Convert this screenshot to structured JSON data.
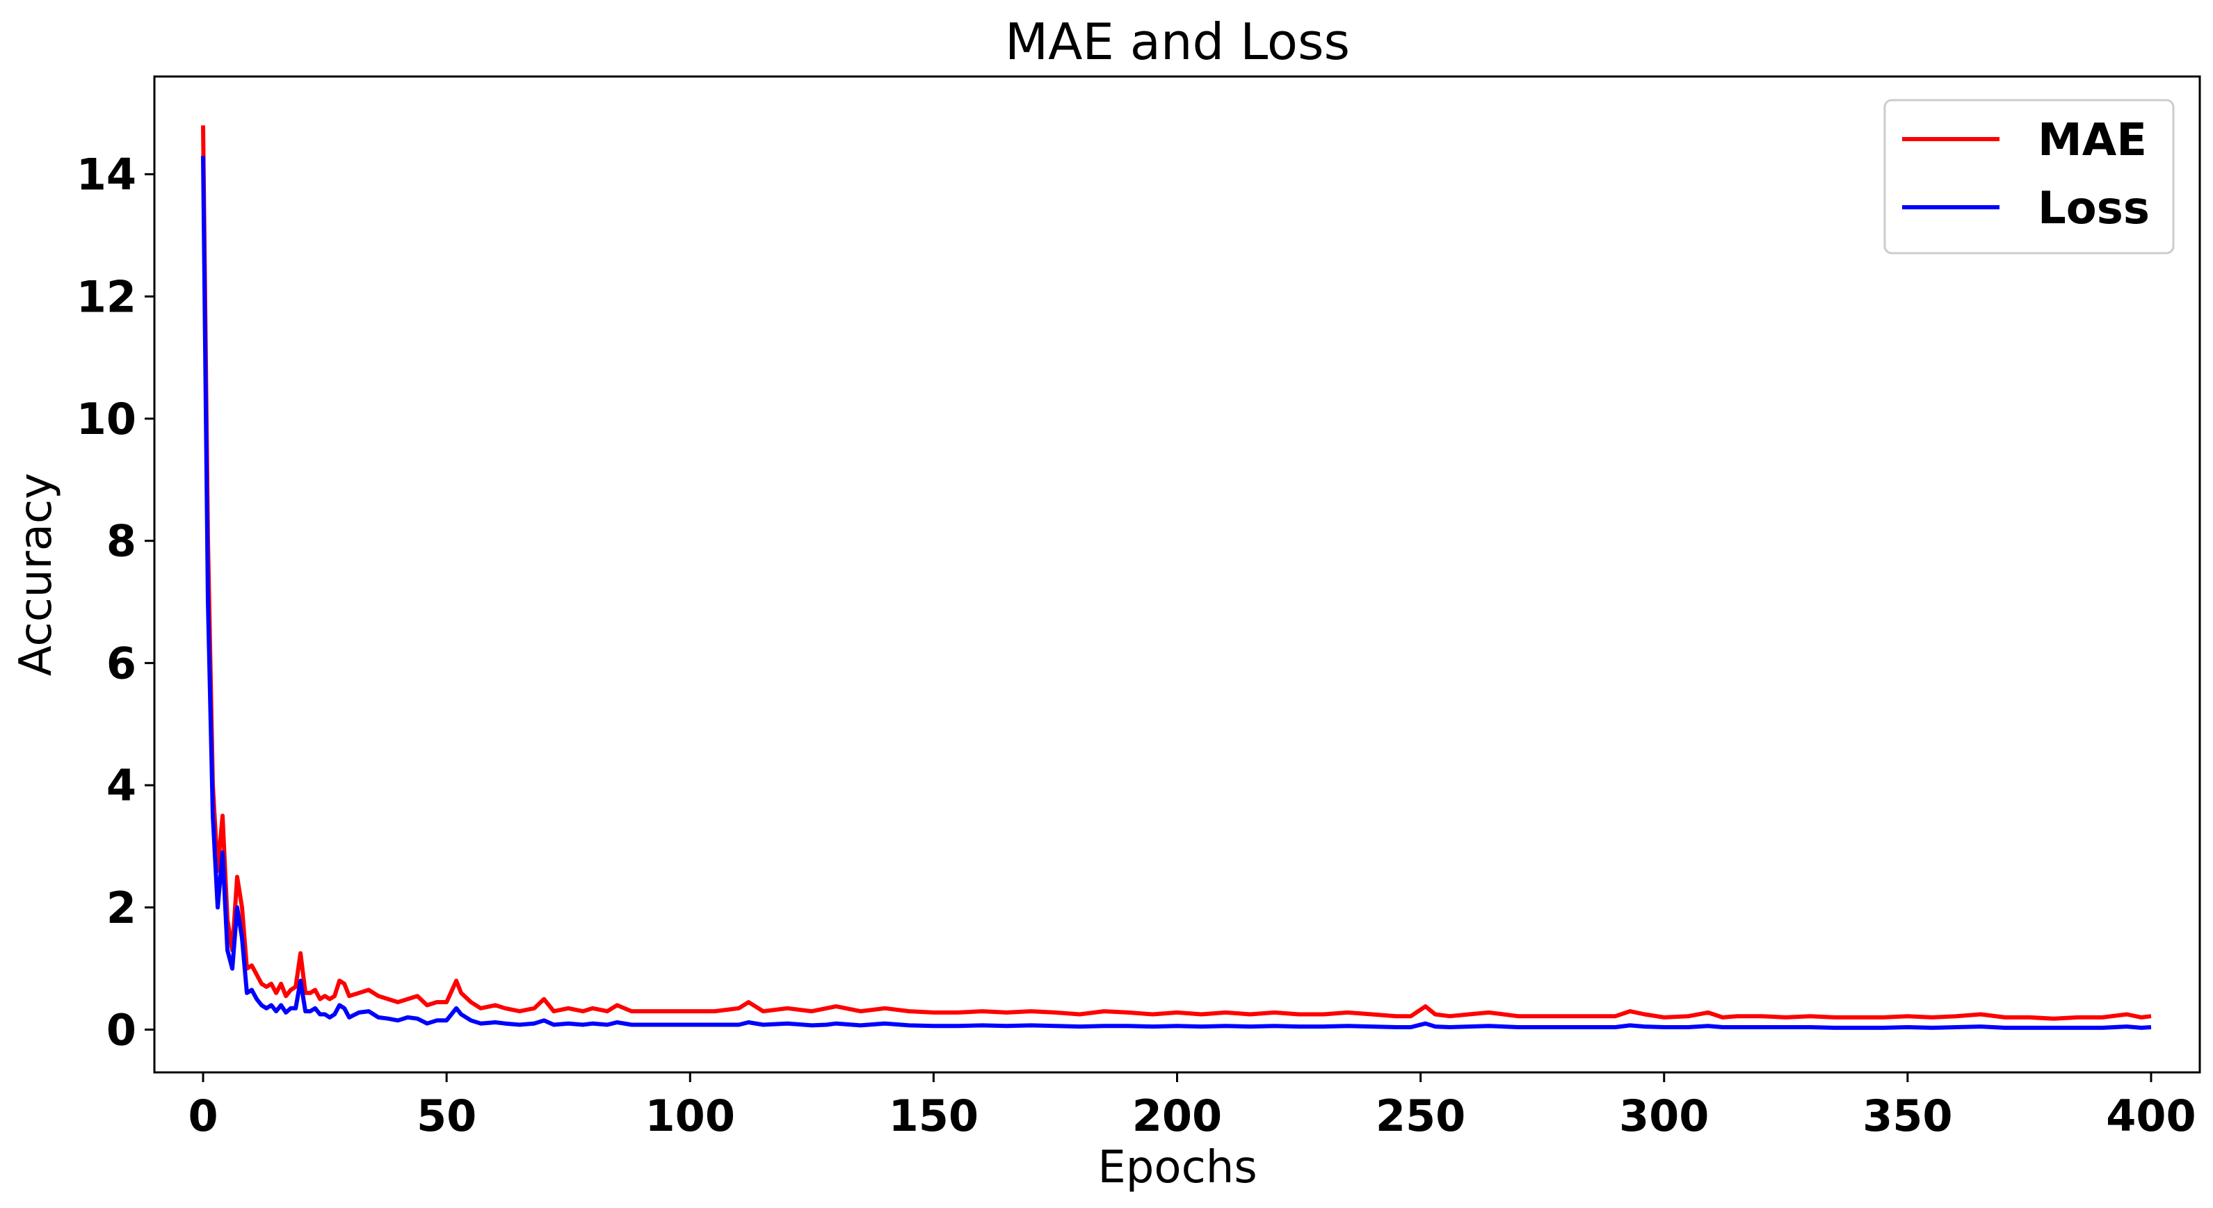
{
  "chart_data": {
    "type": "line",
    "title": "MAE and Loss",
    "xlabel": "Epochs",
    "ylabel": "Accuracy",
    "xlim": [
      -10,
      410
    ],
    "ylim": [
      -0.7,
      15.6
    ],
    "xticks": [
      0,
      50,
      100,
      150,
      200,
      250,
      300,
      350,
      400
    ],
    "yticks": [
      0,
      2,
      4,
      6,
      8,
      10,
      12,
      14
    ],
    "grid": false,
    "legend_position": "top-right",
    "series": [
      {
        "name": "MAE",
        "color": "#ff0000",
        "points": [
          [
            0,
            14.8
          ],
          [
            1,
            8.0
          ],
          [
            2,
            4.0
          ],
          [
            3,
            2.6
          ],
          [
            4,
            3.5
          ],
          [
            5,
            1.8
          ],
          [
            6,
            1.3
          ],
          [
            7,
            2.5
          ],
          [
            8,
            2.0
          ],
          [
            9,
            1.0
          ],
          [
            10,
            1.05
          ],
          [
            11,
            0.9
          ],
          [
            12,
            0.75
          ],
          [
            13,
            0.7
          ],
          [
            14,
            0.75
          ],
          [
            15,
            0.6
          ],
          [
            16,
            0.75
          ],
          [
            17,
            0.55
          ],
          [
            18,
            0.65
          ],
          [
            19,
            0.7
          ],
          [
            20,
            1.25
          ],
          [
            21,
            0.6
          ],
          [
            22,
            0.6
          ],
          [
            23,
            0.65
          ],
          [
            24,
            0.5
          ],
          [
            25,
            0.55
          ],
          [
            26,
            0.5
          ],
          [
            27,
            0.55
          ],
          [
            28,
            0.8
          ],
          [
            29,
            0.75
          ],
          [
            30,
            0.55
          ],
          [
            32,
            0.6
          ],
          [
            34,
            0.65
          ],
          [
            36,
            0.55
          ],
          [
            38,
            0.5
          ],
          [
            40,
            0.45
          ],
          [
            42,
            0.5
          ],
          [
            44,
            0.55
          ],
          [
            46,
            0.4
          ],
          [
            48,
            0.45
          ],
          [
            50,
            0.45
          ],
          [
            52,
            0.8
          ],
          [
            53,
            0.6
          ],
          [
            55,
            0.45
          ],
          [
            57,
            0.35
          ],
          [
            60,
            0.4
          ],
          [
            62,
            0.35
          ],
          [
            65,
            0.3
          ],
          [
            68,
            0.35
          ],
          [
            70,
            0.5
          ],
          [
            72,
            0.3
          ],
          [
            75,
            0.35
          ],
          [
            78,
            0.3
          ],
          [
            80,
            0.35
          ],
          [
            83,
            0.3
          ],
          [
            85,
            0.4
          ],
          [
            88,
            0.3
          ],
          [
            90,
            0.3
          ],
          [
            95,
            0.3
          ],
          [
            100,
            0.3
          ],
          [
            105,
            0.3
          ],
          [
            110,
            0.35
          ],
          [
            112,
            0.45
          ],
          [
            115,
            0.3
          ],
          [
            120,
            0.35
          ],
          [
            125,
            0.3
          ],
          [
            128,
            0.35
          ],
          [
            130,
            0.38
          ],
          [
            135,
            0.3
          ],
          [
            140,
            0.35
          ],
          [
            145,
            0.3
          ],
          [
            150,
            0.28
          ],
          [
            155,
            0.28
          ],
          [
            160,
            0.3
          ],
          [
            165,
            0.28
          ],
          [
            170,
            0.3
          ],
          [
            175,
            0.28
          ],
          [
            180,
            0.25
          ],
          [
            185,
            0.3
          ],
          [
            190,
            0.28
          ],
          [
            195,
            0.25
          ],
          [
            200,
            0.28
          ],
          [
            205,
            0.25
          ],
          [
            210,
            0.28
          ],
          [
            215,
            0.25
          ],
          [
            220,
            0.28
          ],
          [
            225,
            0.25
          ],
          [
            230,
            0.25
          ],
          [
            235,
            0.28
          ],
          [
            240,
            0.25
          ],
          [
            245,
            0.22
          ],
          [
            248,
            0.22
          ],
          [
            251,
            0.38
          ],
          [
            253,
            0.25
          ],
          [
            256,
            0.22
          ],
          [
            260,
            0.25
          ],
          [
            264,
            0.28
          ],
          [
            267,
            0.25
          ],
          [
            270,
            0.22
          ],
          [
            275,
            0.22
          ],
          [
            280,
            0.22
          ],
          [
            285,
            0.22
          ],
          [
            290,
            0.22
          ],
          [
            293,
            0.3
          ],
          [
            296,
            0.25
          ],
          [
            300,
            0.2
          ],
          [
            305,
            0.22
          ],
          [
            309,
            0.28
          ],
          [
            312,
            0.2
          ],
          [
            315,
            0.22
          ],
          [
            320,
            0.22
          ],
          [
            325,
            0.2
          ],
          [
            330,
            0.22
          ],
          [
            335,
            0.2
          ],
          [
            340,
            0.2
          ],
          [
            345,
            0.2
          ],
          [
            350,
            0.22
          ],
          [
            355,
            0.2
          ],
          [
            360,
            0.22
          ],
          [
            365,
            0.25
          ],
          [
            370,
            0.2
          ],
          [
            375,
            0.2
          ],
          [
            380,
            0.18
          ],
          [
            385,
            0.2
          ],
          [
            390,
            0.2
          ],
          [
            395,
            0.25
          ],
          [
            398,
            0.2
          ],
          [
            400,
            0.22
          ]
        ]
      },
      {
        "name": "Loss",
        "color": "#0000ff",
        "points": [
          [
            0,
            14.3
          ],
          [
            1,
            7.0
          ],
          [
            2,
            3.5
          ],
          [
            3,
            2.0
          ],
          [
            4,
            2.9
          ],
          [
            5,
            1.3
          ],
          [
            6,
            1.0
          ],
          [
            7,
            2.0
          ],
          [
            8,
            1.5
          ],
          [
            9,
            0.6
          ],
          [
            10,
            0.65
          ],
          [
            11,
            0.5
          ],
          [
            12,
            0.4
          ],
          [
            13,
            0.35
          ],
          [
            14,
            0.4
          ],
          [
            15,
            0.3
          ],
          [
            16,
            0.4
          ],
          [
            17,
            0.28
          ],
          [
            18,
            0.35
          ],
          [
            19,
            0.35
          ],
          [
            20,
            0.8
          ],
          [
            21,
            0.3
          ],
          [
            22,
            0.3
          ],
          [
            23,
            0.35
          ],
          [
            24,
            0.25
          ],
          [
            25,
            0.25
          ],
          [
            26,
            0.2
          ],
          [
            27,
            0.25
          ],
          [
            28,
            0.4
          ],
          [
            29,
            0.35
          ],
          [
            30,
            0.2
          ],
          [
            32,
            0.28
          ],
          [
            34,
            0.3
          ],
          [
            36,
            0.2
          ],
          [
            38,
            0.18
          ],
          [
            40,
            0.15
          ],
          [
            42,
            0.2
          ],
          [
            44,
            0.18
          ],
          [
            46,
            0.1
          ],
          [
            48,
            0.15
          ],
          [
            50,
            0.15
          ],
          [
            52,
            0.35
          ],
          [
            53,
            0.25
          ],
          [
            55,
            0.15
          ],
          [
            57,
            0.1
          ],
          [
            60,
            0.12
          ],
          [
            62,
            0.1
          ],
          [
            65,
            0.08
          ],
          [
            68,
            0.1
          ],
          [
            70,
            0.15
          ],
          [
            72,
            0.08
          ],
          [
            75,
            0.1
          ],
          [
            78,
            0.08
          ],
          [
            80,
            0.1
          ],
          [
            83,
            0.08
          ],
          [
            85,
            0.12
          ],
          [
            88,
            0.08
          ],
          [
            90,
            0.08
          ],
          [
            95,
            0.08
          ],
          [
            100,
            0.08
          ],
          [
            105,
            0.08
          ],
          [
            110,
            0.08
          ],
          [
            112,
            0.12
          ],
          [
            115,
            0.08
          ],
          [
            120,
            0.1
          ],
          [
            125,
            0.07
          ],
          [
            128,
            0.08
          ],
          [
            130,
            0.1
          ],
          [
            135,
            0.07
          ],
          [
            140,
            0.1
          ],
          [
            145,
            0.07
          ],
          [
            150,
            0.06
          ],
          [
            155,
            0.06
          ],
          [
            160,
            0.07
          ],
          [
            165,
            0.06
          ],
          [
            170,
            0.07
          ],
          [
            175,
            0.06
          ],
          [
            180,
            0.05
          ],
          [
            185,
            0.06
          ],
          [
            190,
            0.06
          ],
          [
            195,
            0.05
          ],
          [
            200,
            0.06
          ],
          [
            205,
            0.05
          ],
          [
            210,
            0.06
          ],
          [
            215,
            0.05
          ],
          [
            220,
            0.06
          ],
          [
            225,
            0.05
          ],
          [
            230,
            0.05
          ],
          [
            235,
            0.06
          ],
          [
            240,
            0.05
          ],
          [
            245,
            0.04
          ],
          [
            248,
            0.04
          ],
          [
            251,
            0.1
          ],
          [
            253,
            0.05
          ],
          [
            256,
            0.04
          ],
          [
            260,
            0.05
          ],
          [
            264,
            0.06
          ],
          [
            267,
            0.05
          ],
          [
            270,
            0.04
          ],
          [
            275,
            0.04
          ],
          [
            280,
            0.04
          ],
          [
            285,
            0.04
          ],
          [
            290,
            0.04
          ],
          [
            293,
            0.07
          ],
          [
            296,
            0.05
          ],
          [
            300,
            0.04
          ],
          [
            305,
            0.04
          ],
          [
            309,
            0.06
          ],
          [
            312,
            0.04
          ],
          [
            315,
            0.04
          ],
          [
            320,
            0.04
          ],
          [
            325,
            0.04
          ],
          [
            330,
            0.04
          ],
          [
            335,
            0.03
          ],
          [
            340,
            0.03
          ],
          [
            345,
            0.03
          ],
          [
            350,
            0.04
          ],
          [
            355,
            0.03
          ],
          [
            360,
            0.04
          ],
          [
            365,
            0.05
          ],
          [
            370,
            0.03
          ],
          [
            375,
            0.03
          ],
          [
            380,
            0.03
          ],
          [
            385,
            0.03
          ],
          [
            390,
            0.03
          ],
          [
            395,
            0.05
          ],
          [
            398,
            0.03
          ],
          [
            400,
            0.04
          ]
        ]
      }
    ]
  }
}
